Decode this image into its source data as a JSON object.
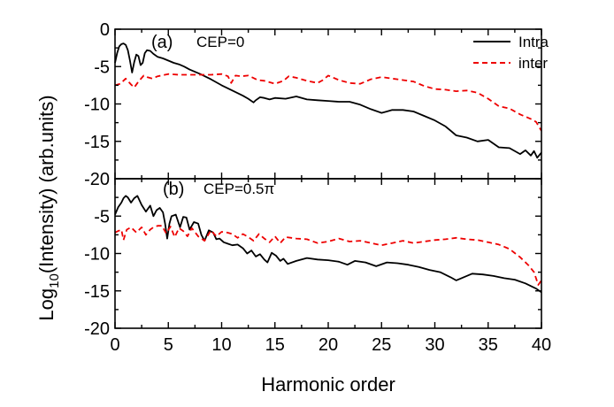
{
  "chart_data": [
    {
      "type": "line",
      "panel_label": "(a)",
      "annotation": "CEP=0",
      "xlabel": "Harmonic order",
      "ylabel": "Log10(Intensity) (arb.units)",
      "ylabel_parts": {
        "pre": "Log",
        "sub": "10",
        "post": "(Intensity) (arb.units)"
      },
      "xlim": [
        0,
        40
      ],
      "ylim": [
        -20,
        0
      ],
      "x_ticks": [
        0,
        5,
        10,
        15,
        20,
        25,
        30,
        35,
        40
      ],
      "y_ticks": [
        0,
        -5,
        -10,
        -15,
        -20
      ],
      "y_tick_labels": [
        "0",
        "-5",
        "-10",
        "-15",
        "-20"
      ],
      "grid": false,
      "legend_position": "top-right",
      "series": [
        {
          "name": "Intra",
          "color": "#000000",
          "style": "solid",
          "x": [
            0,
            0.2,
            0.4,
            0.6,
            0.8,
            1,
            1.2,
            1.4,
            1.6,
            1.8,
            2,
            2.2,
            2.4,
            2.6,
            2.8,
            3,
            3.3,
            3.6,
            4,
            4.5,
            5,
            5.5,
            6,
            6.5,
            7,
            8,
            9,
            10,
            11,
            12,
            12.5,
            13,
            13.2,
            13.6,
            14,
            14.5,
            15,
            16,
            17,
            18,
            19,
            20,
            21,
            22,
            23,
            24,
            25,
            25.5,
            26,
            27,
            28,
            29,
            30,
            31,
            32,
            33,
            34,
            35,
            36,
            37,
            38,
            38.5,
            39,
            39.3,
            39.6,
            40
          ],
          "y": [
            -4.5,
            -3.2,
            -2.3,
            -2.0,
            -1.9,
            -2.1,
            -2.8,
            -4.2,
            -5.8,
            -4.4,
            -3.4,
            -3.6,
            -4.8,
            -4.5,
            -3.2,
            -2.8,
            -2.9,
            -3.3,
            -3.7,
            -3.9,
            -4.2,
            -4.5,
            -4.7,
            -5.0,
            -5.4,
            -6.0,
            -6.7,
            -7.5,
            -8.2,
            -8.9,
            -9.3,
            -9.8,
            -9.5,
            -9.1,
            -9.2,
            -9.4,
            -9.2,
            -9.3,
            -9.0,
            -9.4,
            -9.5,
            -9.6,
            -9.7,
            -9.7,
            -10.1,
            -10.7,
            -11.2,
            -11.0,
            -10.8,
            -10.8,
            -11.0,
            -11.6,
            -12.2,
            -13.0,
            -14.2,
            -14.5,
            -15.0,
            -14.8,
            -15.8,
            -15.9,
            -16.7,
            -16.2,
            -16.9,
            -16.3,
            -17.2,
            -16.5
          ]
        },
        {
          "name": "inter",
          "color": "#ee0000",
          "style": "dashed",
          "x": [
            0,
            0.5,
            1,
            1.5,
            1.8,
            2.2,
            2.7,
            3,
            3.5,
            4,
            5,
            6,
            7,
            8,
            9,
            10,
            10.6,
            10.9,
            11.3,
            11.8,
            12.5,
            13.4,
            14,
            15,
            15.8,
            16.3,
            17,
            18,
            19,
            19.5,
            20,
            21,
            22,
            23,
            24,
            25,
            26,
            27,
            28,
            29,
            30,
            31,
            32,
            33,
            34,
            35,
            36,
            37,
            38,
            39,
            39.5,
            40
          ],
          "y": [
            -7.5,
            -7.3,
            -6.6,
            -7.4,
            -7.8,
            -7.0,
            -6.2,
            -6.4,
            -6.6,
            -6.3,
            -6.0,
            -6.1,
            -6.1,
            -6.1,
            -6.1,
            -6.0,
            -6.3,
            -7.2,
            -6.2,
            -6.3,
            -6.2,
            -6.8,
            -6.9,
            -7.3,
            -6.9,
            -6.3,
            -6.5,
            -6.9,
            -7.2,
            -6.8,
            -6.2,
            -6.8,
            -7.2,
            -7.3,
            -6.7,
            -6.4,
            -6.6,
            -6.8,
            -7.0,
            -7.6,
            -8.0,
            -8.1,
            -8.3,
            -8.2,
            -8.5,
            -9.3,
            -10.3,
            -10.6,
            -11.4,
            -12.0,
            -12.4,
            -13.6
          ]
        }
      ]
    },
    {
      "type": "line",
      "panel_label": "(b)",
      "annotation": "CEP=0.5π",
      "xlabel": "Harmonic order",
      "xlim": [
        0,
        40
      ],
      "ylim": [
        -20,
        0
      ],
      "x_ticks": [
        0,
        5,
        10,
        15,
        20,
        25,
        30,
        35,
        40
      ],
      "x_tick_labels": [
        "0",
        "5",
        "10",
        "15",
        "20",
        "25",
        "30",
        "35",
        "40"
      ],
      "y_ticks": [
        -5,
        -10,
        -15,
        -20
      ],
      "y_tick_labels": [
        "-5",
        "-10",
        "-15",
        "-20"
      ],
      "grid": false,
      "series": [
        {
          "name": "Intra",
          "color": "#000000",
          "style": "solid",
          "x": [
            0,
            0.3,
            0.6,
            0.8,
            1.0,
            1.2,
            1.5,
            1.8,
            2.1,
            2.5,
            2.9,
            3.3,
            3.6,
            3.9,
            4.2,
            4.5,
            4.7,
            4.9,
            5.1,
            5.3,
            5.7,
            6.1,
            6.4,
            6.7,
            7.0,
            7.4,
            7.8,
            8.1,
            8.4,
            8.8,
            9.2,
            9.5,
            9.8,
            10.2,
            10.6,
            11.0,
            11.5,
            12.0,
            12.4,
            12.8,
            13.2,
            13.6,
            14.0,
            14.3,
            14.7,
            15.1,
            15.5,
            15.8,
            16.2,
            17,
            18,
            19,
            20,
            21,
            21.8,
            22.5,
            23.5,
            24.5,
            25.5,
            26.5,
            27.5,
            28.5,
            29.5,
            30.5,
            31.5,
            32,
            32.5,
            33.5,
            34.5,
            35.5,
            36.5,
            37.5,
            38.5,
            39.5,
            40
          ],
          "y": [
            -4.8,
            -3.8,
            -3.2,
            -2.6,
            -2.3,
            -2.5,
            -3.2,
            -2.6,
            -2.3,
            -3.5,
            -4.4,
            -3.6,
            -5.0,
            -4.2,
            -3.9,
            -4.5,
            -6.0,
            -8.0,
            -6.0,
            -5.0,
            -4.8,
            -6.5,
            -5.1,
            -5.2,
            -6.8,
            -5.8,
            -6.0,
            -7.5,
            -8.3,
            -6.9,
            -7.2,
            -8.1,
            -8.0,
            -8.5,
            -8.7,
            -8.9,
            -8.8,
            -9.3,
            -10.0,
            -9.6,
            -10.4,
            -10.1,
            -10.8,
            -11.2,
            -9.9,
            -10.3,
            -11.0,
            -10.7,
            -11.4,
            -11.0,
            -10.6,
            -10.8,
            -10.9,
            -11.1,
            -11.5,
            -11.0,
            -11.2,
            -11.7,
            -11.2,
            -11.3,
            -11.5,
            -11.8,
            -12.2,
            -12.5,
            -13.2,
            -13.6,
            -13.3,
            -12.7,
            -12.8,
            -13.0,
            -13.3,
            -13.5,
            -14.0,
            -14.7,
            -15.2
          ]
        },
        {
          "name": "inter",
          "color": "#ee0000",
          "style": "dashed",
          "x": [
            0,
            0.3,
            0.6,
            0.8,
            1.1,
            1.5,
            2.0,
            2.5,
            2.9,
            3.3,
            3.6,
            4.0,
            4.4,
            4.8,
            5.2,
            5.6,
            6.0,
            6.4,
            6.8,
            7.2,
            7.8,
            8.4,
            9.0,
            9.5,
            10.0,
            10.5,
            11.0,
            11.5,
            12.0,
            12.5,
            13.0,
            13.5,
            14.0,
            14.5,
            15.0,
            15.5,
            16.0,
            17,
            18,
            19,
            20,
            21,
            22,
            23,
            24,
            25,
            26,
            27,
            28,
            29,
            30,
            31,
            32,
            33,
            34,
            35,
            36,
            37,
            38,
            38.8,
            39.3,
            39.7,
            40
          ],
          "y": [
            -7.2,
            -7.0,
            -6.8,
            -8.2,
            -6.8,
            -6.5,
            -7.2,
            -6.5,
            -7.5,
            -6.8,
            -6.5,
            -6.3,
            -6.3,
            -7.3,
            -6.4,
            -7.8,
            -6.6,
            -7.0,
            -7.7,
            -6.6,
            -7.7,
            -8.3,
            -6.9,
            -7.7,
            -7.1,
            -7.2,
            -7.4,
            -7.9,
            -7.4,
            -7.8,
            -8.3,
            -7.4,
            -8.0,
            -8.5,
            -7.7,
            -8.6,
            -7.8,
            -8.0,
            -8.1,
            -8.6,
            -8.4,
            -8.0,
            -8.4,
            -8.3,
            -8.6,
            -8.9,
            -8.6,
            -8.3,
            -8.6,
            -8.4,
            -8.2,
            -8.1,
            -7.9,
            -8.1,
            -8.2,
            -8.5,
            -8.8,
            -9.4,
            -10.5,
            -11.6,
            -12.5,
            -14.2,
            -13.6
          ]
        }
      ]
    }
  ]
}
